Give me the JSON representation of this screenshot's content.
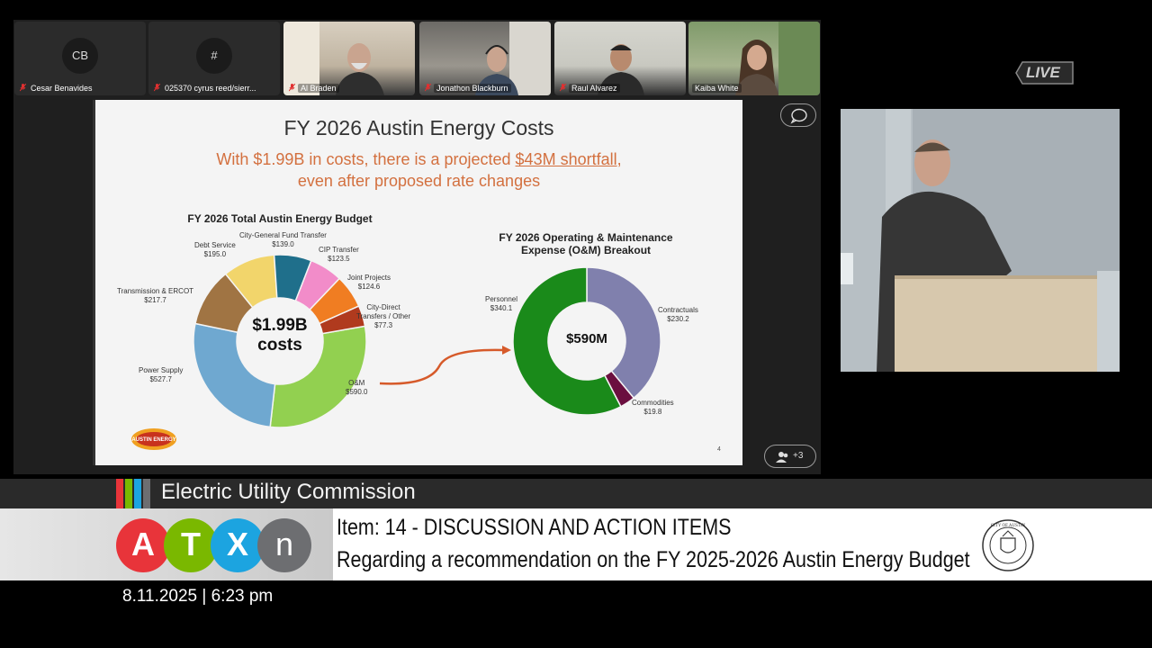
{
  "participants": [
    {
      "initials": "CB",
      "name": "Cesar Benavides",
      "muted": true,
      "video": false
    },
    {
      "initials": "#",
      "name": "025370 cyrus reed/sierr...",
      "muted": true,
      "video": false
    },
    {
      "name": "Al Braden",
      "muted": true,
      "video": true
    },
    {
      "name": "Jonathon Blackburn",
      "muted": true,
      "video": true
    },
    {
      "name": "Raul Alvarez",
      "muted": true,
      "video": true
    },
    {
      "name": "Kaiba White",
      "muted": false,
      "video": true
    }
  ],
  "slide": {
    "title": "FY 2026 Austin Energy Costs",
    "subtitle_prefix": "With $1.99B in costs, there is a projected ",
    "subtitle_link": "$43M shortfall",
    "subtitle_suffix": ",",
    "subtitle_line2": "even after proposed rate changes",
    "page_marker": "4",
    "logo_text": "AUSTIN ENERGY"
  },
  "chart_data": [
    {
      "type": "pie",
      "title": "FY 2026 Total Austin Energy Budget",
      "center_label": [
        "$1.99B",
        "costs"
      ],
      "slices": [
        {
          "label": "O&M",
          "value": 590.0,
          "color": "#92d050"
        },
        {
          "label": "Power Supply",
          "value": 527.7,
          "color": "#6fa8d0"
        },
        {
          "label": "Transmission & ERCOT",
          "value": 217.7,
          "color": "#a07443"
        },
        {
          "label": "Debt Service",
          "value": 195.0,
          "color": "#f2d56b"
        },
        {
          "label": "City-General Fund Transfer",
          "value": 139.0,
          "color": "#1f6f8b"
        },
        {
          "label": "CIP Transfer",
          "value": 123.5,
          "color": "#f28cc9"
        },
        {
          "label": "Joint Projects",
          "value": 124.6,
          "color": "#f07d22"
        },
        {
          "label": "City-Direct Transfers / Other",
          "value": 77.3,
          "color": "#b03a1e"
        }
      ]
    },
    {
      "type": "pie",
      "title": "FY 2026 Operating & Maintenance Expense (O&M) Breakout",
      "center_label": [
        "$590M"
      ],
      "slices": [
        {
          "label": "Contractuals",
          "value": 230.2,
          "color": "#8080ad"
        },
        {
          "label": "Commodities",
          "value": 19.8,
          "color": "#6b0f3f"
        },
        {
          "label": "Personnel",
          "value": 340.1,
          "color": "#1a8a1a"
        }
      ]
    }
  ],
  "labels": {
    "cgf": {
      "name": "City-General Fund Transfer",
      "value": "$139.0"
    },
    "cip": {
      "name": "CIP Transfer",
      "value": "$123.5"
    },
    "debt": {
      "name": "Debt Service",
      "value": "$195.0"
    },
    "jp": {
      "name": "Joint Projects",
      "value": "$124.6"
    },
    "trans": {
      "name": "Transmission & ERCOT",
      "value": "$217.7"
    },
    "cdt1": "City-Direct",
    "cdt2": "Transfers / Other",
    "cdt_value": "$77.3",
    "ps": {
      "name": "Power Supply",
      "value": "$527.7"
    },
    "om": {
      "name": "O&M",
      "value": "$590.0"
    },
    "pers": {
      "name": "Personnel",
      "value": "$340.1"
    },
    "contr": {
      "name": "Contractuals",
      "value": "$230.2"
    },
    "comm": {
      "name": "Commodities",
      "value": "$19.8"
    }
  },
  "controls": {
    "chat_icon": "chat-bubble-icon",
    "people_count": "+3"
  },
  "live_label": "LIVE",
  "lower_third": {
    "commission": "Electric Utility Commission",
    "item_line1": "Item: 14 - DISCUSSION AND ACTION ITEMS",
    "item_line2": "Regarding a recommendation on the FY 2025-2026 Austin Energy Budget",
    "atxn_letters": [
      "A",
      "T",
      "X",
      "N"
    ],
    "seal_text": "CITY OF AUSTIN",
    "datetime": "8.11.2025 | 6:23 pm"
  },
  "colors": {
    "accent_orange": "#d3703f",
    "atxn": [
      "#e8343a",
      "#7ab800",
      "#1ca4e0",
      "#6d6e71"
    ]
  }
}
